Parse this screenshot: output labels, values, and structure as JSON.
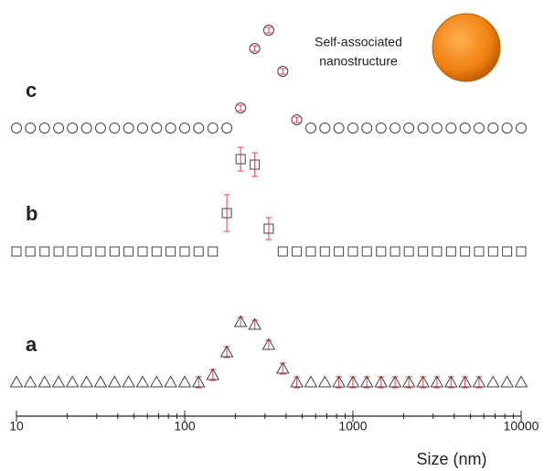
{
  "chart_data": {
    "type": "scatter",
    "xlabel": "Size (nm)",
    "xscale": "log",
    "xlim": [
      10,
      10000
    ],
    "xticks": [
      10,
      100,
      1000,
      10000
    ],
    "xminorticks": [
      20,
      30,
      40,
      50,
      60,
      70,
      80,
      90,
      200,
      300,
      400,
      500,
      600,
      700,
      800,
      900,
      2000,
      3000,
      4000,
      5000,
      6000,
      7000,
      8000,
      9000
    ],
    "ylim": [
      0,
      450
    ],
    "error_color": "#e8434a",
    "x": [
      10,
      12.1,
      14.7,
      17.8,
      21.5,
      26.1,
      31.6,
      38.3,
      46.4,
      56.2,
      68.1,
      82.5,
      100,
      121,
      147,
      178,
      215,
      261,
      316,
      383,
      464,
      562,
      681,
      825,
      1000,
      1210,
      1470,
      1780,
      2150,
      2610,
      3160,
      3830,
      4640,
      5620,
      6810,
      8250,
      10000
    ],
    "series": [
      {
        "name": "a",
        "marker": "triangle",
        "color": "#444444",
        "values": [
          37,
          37,
          37,
          37,
          37,
          37,
          37,
          37,
          37,
          37,
          37,
          37,
          37,
          37,
          45,
          70,
          103,
          100,
          78,
          52,
          37,
          37,
          37,
          37,
          37,
          37,
          37,
          37,
          37,
          37,
          37,
          37,
          37,
          37,
          37,
          37,
          37
        ],
        "errors": [
          null,
          null,
          null,
          null,
          null,
          null,
          null,
          null,
          null,
          null,
          null,
          null,
          null,
          6,
          6,
          6,
          5,
          5,
          5,
          6,
          6,
          null,
          null,
          6,
          6,
          6,
          6,
          6,
          6,
          6,
          6,
          6,
          6,
          6,
          null,
          null,
          null
        ]
      },
      {
        "name": "b",
        "marker": "square",
        "color": "#444444",
        "values": [
          180,
          180,
          180,
          180,
          180,
          180,
          180,
          180,
          180,
          180,
          180,
          180,
          180,
          180,
          180,
          222,
          281,
          275,
          205,
          180,
          180,
          180,
          180,
          180,
          180,
          180,
          180,
          180,
          180,
          180,
          180,
          180,
          180,
          180,
          180,
          180,
          180
        ],
        "errors": [
          null,
          null,
          null,
          null,
          null,
          null,
          null,
          null,
          null,
          null,
          null,
          null,
          null,
          null,
          null,
          20,
          13,
          13,
          12,
          null,
          null,
          null,
          null,
          null,
          null,
          null,
          null,
          null,
          null,
          null,
          null,
          null,
          null,
          null,
          null,
          null,
          null
        ]
      },
      {
        "name": "c",
        "marker": "circle",
        "color": "#444444",
        "values": [
          315,
          315,
          315,
          315,
          315,
          315,
          315,
          315,
          315,
          315,
          315,
          315,
          315,
          315,
          315,
          315,
          337,
          402,
          422,
          377,
          324,
          315,
          315,
          315,
          315,
          315,
          315,
          315,
          315,
          315,
          315,
          315,
          315,
          315,
          315,
          315,
          315
        ],
        "errors": [
          null,
          null,
          null,
          null,
          null,
          null,
          null,
          null,
          null,
          null,
          null,
          null,
          null,
          null,
          null,
          null,
          3,
          3,
          3,
          3,
          3,
          null,
          null,
          null,
          null,
          null,
          null,
          null,
          null,
          null,
          null,
          null,
          null,
          null,
          null,
          null,
          null
        ]
      }
    ],
    "annotations": [
      "Self-associated",
      "nanostructure"
    ]
  }
}
